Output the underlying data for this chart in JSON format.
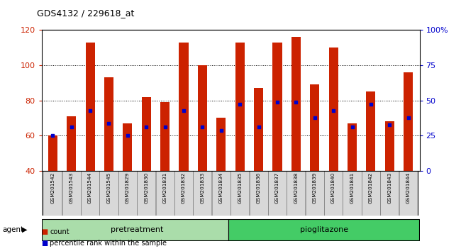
{
  "title": "GDS4132 / 229618_at",
  "samples": [
    "GSM201542",
    "GSM201543",
    "GSM201544",
    "GSM201545",
    "GSM201829",
    "GSM201830",
    "GSM201831",
    "GSM201832",
    "GSM201833",
    "GSM201834",
    "GSM201835",
    "GSM201836",
    "GSM201837",
    "GSM201838",
    "GSM201839",
    "GSM201840",
    "GSM201841",
    "GSM201842",
    "GSM201843",
    "GSM201844"
  ],
  "counts": [
    60,
    71,
    113,
    93,
    67,
    82,
    79,
    113,
    100,
    70,
    113,
    87,
    113,
    116,
    89,
    110,
    67,
    85,
    68,
    96
  ],
  "pct_left_axis": [
    60,
    65,
    74,
    67,
    60,
    65,
    65,
    74,
    65,
    63,
    78,
    65,
    79,
    79,
    70,
    74,
    65,
    78,
    66,
    70
  ],
  "group_labels": [
    "pretreatment",
    "pioglitazone"
  ],
  "group_split": 10,
  "bar_color": "#cc2200",
  "dot_color": "#0000cc",
  "bar_width": 0.5,
  "ylim_left": [
    40,
    120
  ],
  "ylim_right": [
    0,
    100
  ],
  "yticks_left": [
    40,
    60,
    80,
    100,
    120
  ],
  "yticks_right": [
    0,
    25,
    50,
    75,
    100
  ],
  "ytick_labels_right": [
    "0",
    "25",
    "50",
    "75",
    "100%"
  ],
  "group_color1": "#aaddaa",
  "group_color2": "#44cc66",
  "agent_label": "agent",
  "legend_labels": [
    "count",
    "percentile rank within the sample"
  ]
}
